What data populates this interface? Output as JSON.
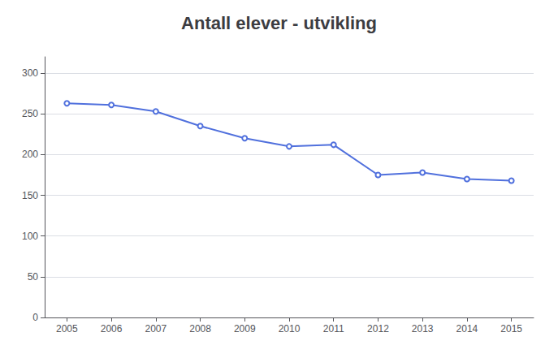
{
  "chart_data": {
    "type": "line",
    "title": "Antall elever - utvikling",
    "x": [
      2005,
      2006,
      2007,
      2008,
      2009,
      2010,
      2011,
      2012,
      2013,
      2014,
      2015
    ],
    "values": [
      263,
      261,
      253,
      235,
      220,
      210,
      212,
      175,
      178,
      170,
      168
    ],
    "xlim": [
      2004.5,
      2015.5
    ],
    "xticks": [
      2005,
      2006,
      2007,
      2008,
      2009,
      2010,
      2011,
      2012,
      2013,
      2014,
      2015
    ],
    "ylim": [
      0,
      320
    ],
    "yticks": [
      0,
      50,
      100,
      150,
      200,
      250,
      300
    ],
    "grid": true
  }
}
